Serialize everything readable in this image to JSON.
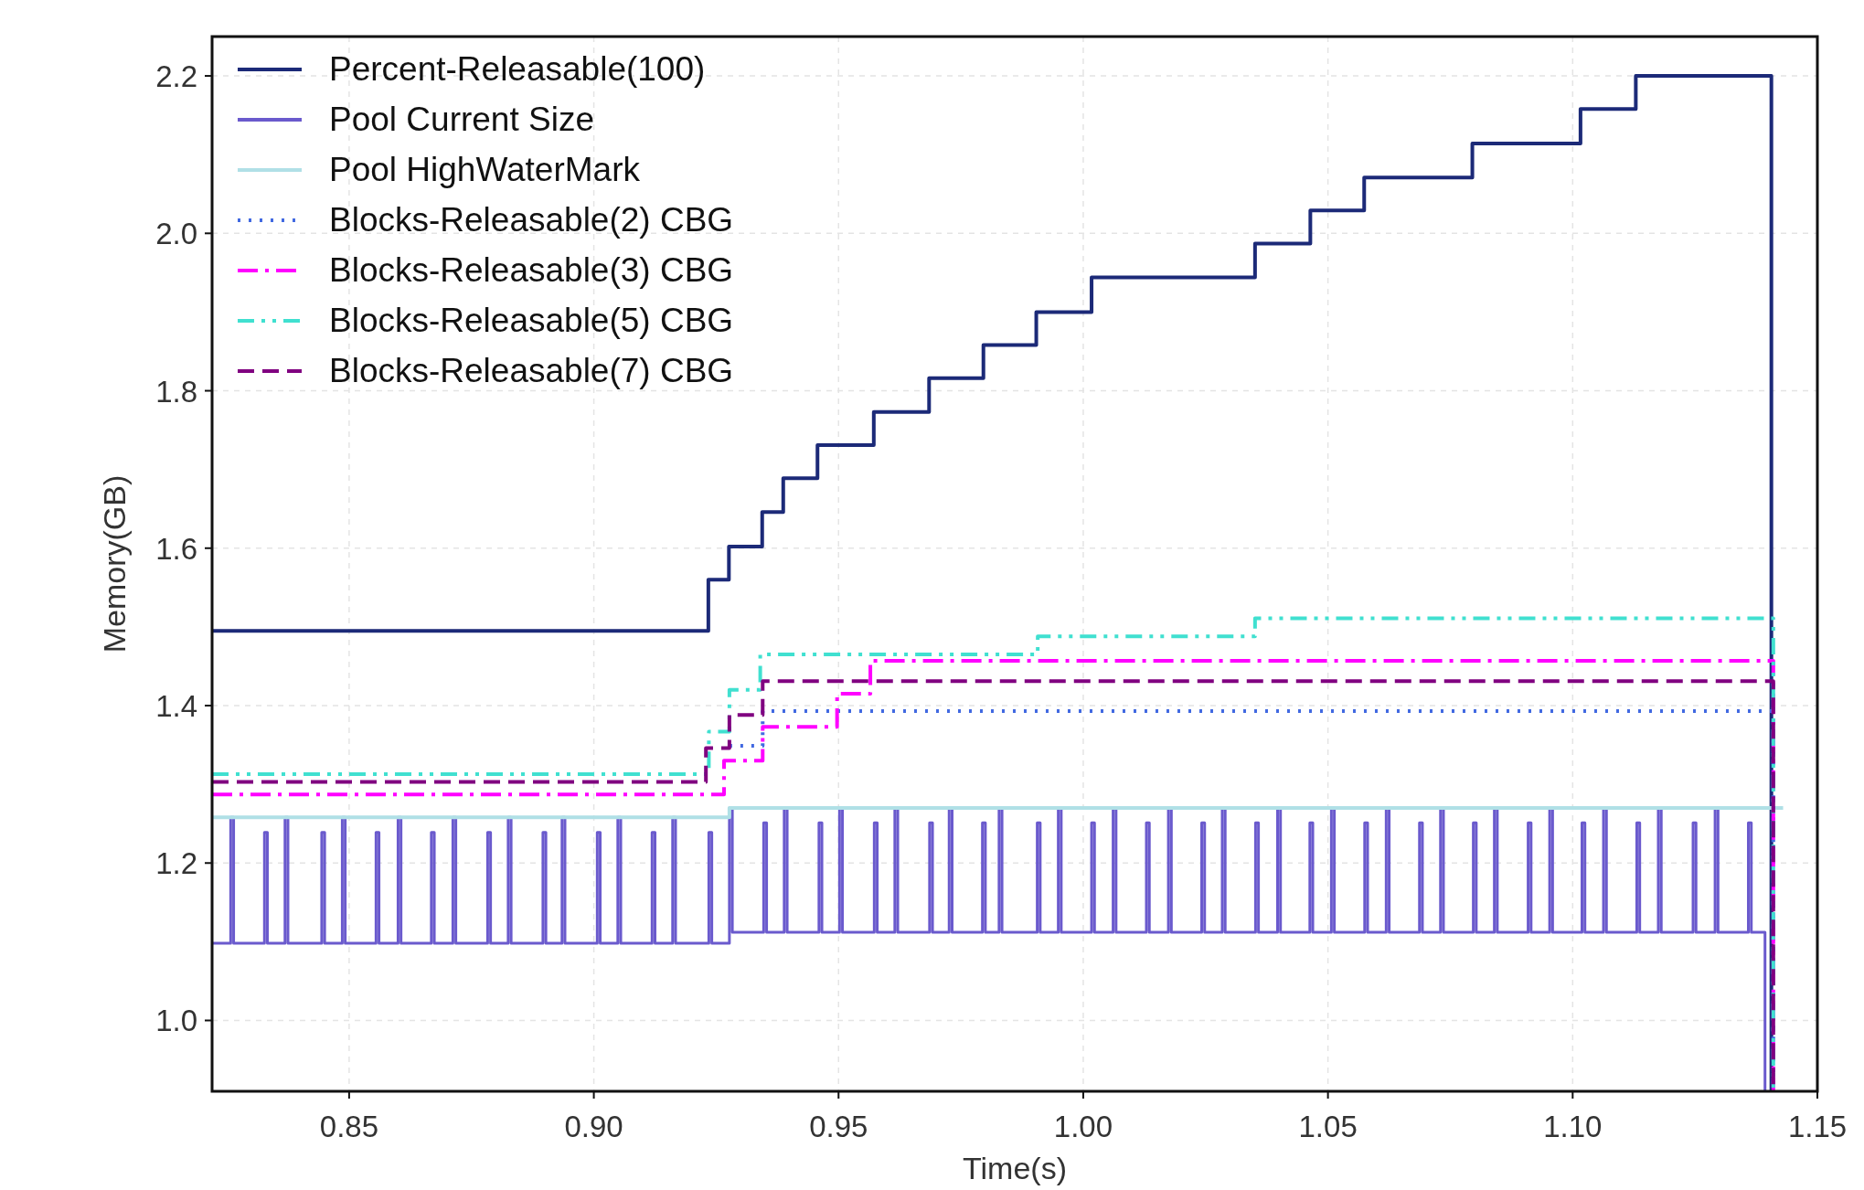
{
  "chart_data": {
    "type": "step",
    "xlabel": "Time(s)",
    "ylabel": "Memory(GB)",
    "xlim": [
      0.822,
      1.15
    ],
    "ylim": [
      0.91,
      2.25
    ],
    "xticks": [
      0.85,
      {
        "value": 0.9,
        "label": "0.90"
      },
      0.95,
      {
        "value": 1.0,
        "label": "1.00"
      },
      1.05,
      {
        "value": 1.1,
        "label": "1.10"
      },
      1.15
    ],
    "yticks": [
      {
        "value": 1.0,
        "label": "1.0"
      },
      1.2,
      1.4,
      1.6,
      1.8,
      {
        "value": 2.0,
        "label": "2.0"
      },
      2.2
    ],
    "grid": true,
    "legend": "top left",
    "series": [
      {
        "name": "Percent-Releasable(100)",
        "color": "#1c2a78",
        "line_style": "solid",
        "x": [
          0.822,
          0.9234,
          0.9276,
          0.9344,
          0.9387,
          0.9457,
          0.9572,
          0.9685,
          0.9796,
          0.9904,
          1.0017,
          1.0351,
          1.0464,
          1.0574,
          1.0795,
          1.1016,
          1.1129,
          1.1406
        ],
        "values": [
          1.495,
          1.56,
          1.602,
          1.646,
          1.689,
          1.731,
          1.773,
          1.816,
          1.858,
          1.9,
          1.944,
          1.987,
          2.029,
          2.071,
          2.114,
          2.158,
          2.2,
          0.91
        ]
      },
      {
        "name": "Pool Current Size",
        "color": "#6a5acd",
        "line_style": "solid",
        "x": [
          0.822,
          0.8258,
          0.8264,
          0.8327,
          0.8333,
          0.8369,
          0.8375,
          0.8444,
          0.845,
          0.8486,
          0.8492,
          0.8555,
          0.8561,
          0.86,
          0.8606,
          0.8668,
          0.8674,
          0.8712,
          0.8718,
          0.8783,
          0.8789,
          0.8825,
          0.8831,
          0.8896,
          0.8902,
          0.8935,
          0.8941,
          0.9007,
          0.9013,
          0.9049,
          0.9055,
          0.9119,
          0.9125,
          0.9161,
          0.9167,
          0.9235,
          0.9241,
          0.9277,
          0.9283,
          0.9347,
          0.9353,
          0.9389,
          0.9395,
          0.946,
          0.9466,
          0.9502,
          0.9508,
          0.9573,
          0.9579,
          0.9615,
          0.9621,
          0.9686,
          0.9692,
          0.9726,
          0.9732,
          0.9794,
          0.98,
          0.9828,
          0.9834,
          0.9906,
          0.9912,
          0.9949,
          0.9955,
          1.0017,
          1.0023,
          1.0061,
          1.0067,
          1.0129,
          1.0135,
          1.0174,
          1.018,
          1.0242,
          1.0248,
          1.0284,
          1.029,
          1.0352,
          1.0358,
          1.0397,
          1.0403,
          1.0463,
          1.0469,
          1.0507,
          1.0513,
          1.0575,
          1.0581,
          1.0619,
          1.0625,
          1.0687,
          1.0693,
          1.073,
          1.0736,
          1.0797,
          1.0803,
          1.084,
          1.0846,
          1.0909,
          1.0915,
          1.0953,
          1.0959,
          1.1019,
          1.1025,
          1.1063,
          1.1069,
          1.1131,
          1.1137,
          1.1175,
          1.1181,
          1.1246,
          1.1252,
          1.1291,
          1.1297,
          1.1359,
          1.1365,
          1.1393
        ],
        "values": [
          1.098,
          1.258,
          1.098,
          1.239,
          1.098,
          1.258,
          1.098,
          1.239,
          1.098,
          1.258,
          1.098,
          1.239,
          1.098,
          1.258,
          1.098,
          1.239,
          1.098,
          1.258,
          1.098,
          1.239,
          1.098,
          1.258,
          1.098,
          1.239,
          1.098,
          1.258,
          1.098,
          1.239,
          1.098,
          1.258,
          1.098,
          1.239,
          1.098,
          1.258,
          1.098,
          1.239,
          1.098,
          1.27,
          1.112,
          1.251,
          1.112,
          1.27,
          1.112,
          1.251,
          1.112,
          1.27,
          1.112,
          1.251,
          1.112,
          1.27,
          1.112,
          1.251,
          1.112,
          1.27,
          1.112,
          1.251,
          1.112,
          1.27,
          1.112,
          1.251,
          1.112,
          1.27,
          1.112,
          1.251,
          1.112,
          1.27,
          1.112,
          1.251,
          1.112,
          1.27,
          1.112,
          1.251,
          1.112,
          1.27,
          1.112,
          1.251,
          1.112,
          1.27,
          1.112,
          1.251,
          1.112,
          1.27,
          1.112,
          1.251,
          1.112,
          1.27,
          1.112,
          1.251,
          1.112,
          1.27,
          1.112,
          1.251,
          1.112,
          1.27,
          1.112,
          1.251,
          1.112,
          1.27,
          1.112,
          1.251,
          1.112,
          1.27,
          1.112,
          1.251,
          1.112,
          1.27,
          1.112,
          1.251,
          1.112,
          1.27,
          1.112,
          1.251,
          1.112,
          0.91
        ]
      },
      {
        "name": "Pool HighWaterMark",
        "color": "#b0e0e6",
        "line_style": "solid",
        "x": [
          0.822,
          0.9277,
          1.143
        ],
        "values": [
          1.258,
          1.27,
          1.27
        ]
      },
      {
        "name": "Blocks-Releasable(2) CBG",
        "color": "#4169e1",
        "line_style": "dotted",
        "x": [
          0.9277,
          0.9345,
          1.141
        ],
        "values": [
          1.349,
          1.393,
          0.91
        ]
      },
      {
        "name": "Blocks-Releasable(3) CBG",
        "color": "#ff00ff",
        "line_style": "dashdot",
        "x": [
          0.822,
          0.9266,
          0.9345,
          0.9497,
          0.9565,
          1.141
        ],
        "values": [
          1.287,
          1.33,
          1.373,
          1.415,
          1.457,
          0.91
        ]
      },
      {
        "name": "Blocks-Releasable(5) CBG",
        "color": "#40e0d0",
        "line_style": "dashdotdot",
        "x": [
          0.822,
          0.9235,
          0.9277,
          0.934,
          0.9907,
          1.0351,
          1.141
        ],
        "values": [
          1.313,
          1.367,
          1.42,
          1.465,
          1.488,
          1.511,
          0.91
        ]
      },
      {
        "name": "Blocks-Releasable(7) CBG",
        "color": "#800080",
        "line_style": "dashed",
        "x": [
          0.822,
          0.9229,
          0.9277,
          0.9345,
          1.141
        ],
        "values": [
          1.303,
          1.346,
          1.388,
          1.431,
          0.91
        ]
      }
    ]
  }
}
